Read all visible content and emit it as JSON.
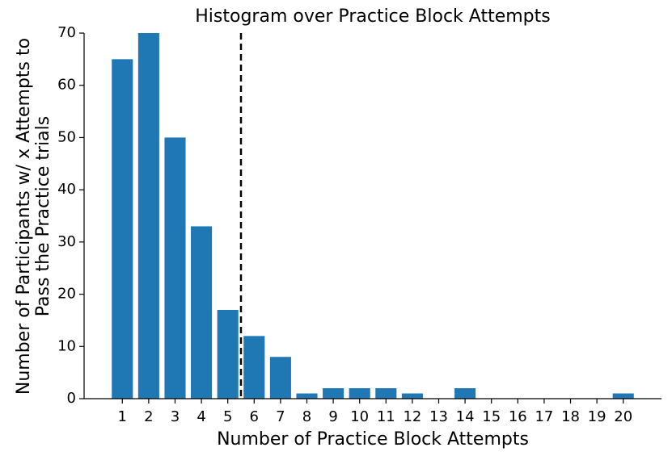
{
  "chart_data": {
    "type": "bar",
    "title": "Histogram over Practice Block Attempts",
    "xlabel": "Number of Practice Block Attempts",
    "ylabel": [
      "Number of Participants w/ x Attempts to",
      "Pass the Practice trials"
    ],
    "x": [
      1,
      2,
      3,
      4,
      5,
      6,
      7,
      8,
      9,
      10,
      11,
      12,
      13,
      14,
      15,
      16,
      17,
      18,
      19,
      20
    ],
    "values": [
      65,
      70,
      50,
      33,
      17,
      12,
      8,
      1,
      2,
      2,
      2,
      1,
      0,
      2,
      0,
      0,
      0,
      0,
      0,
      1
    ],
    "color": "#1f77b4",
    "xlim": [
      -0.45,
      21.45
    ],
    "xticks": [
      1,
      2,
      3,
      4,
      5,
      6,
      7,
      8,
      9,
      10,
      11,
      12,
      13,
      14,
      15,
      16,
      17,
      18,
      19,
      20
    ],
    "ylim": [
      0,
      70
    ],
    "yticks": [
      0,
      10,
      20,
      30,
      40,
      50,
      60,
      70
    ],
    "vline": 5.5
  }
}
